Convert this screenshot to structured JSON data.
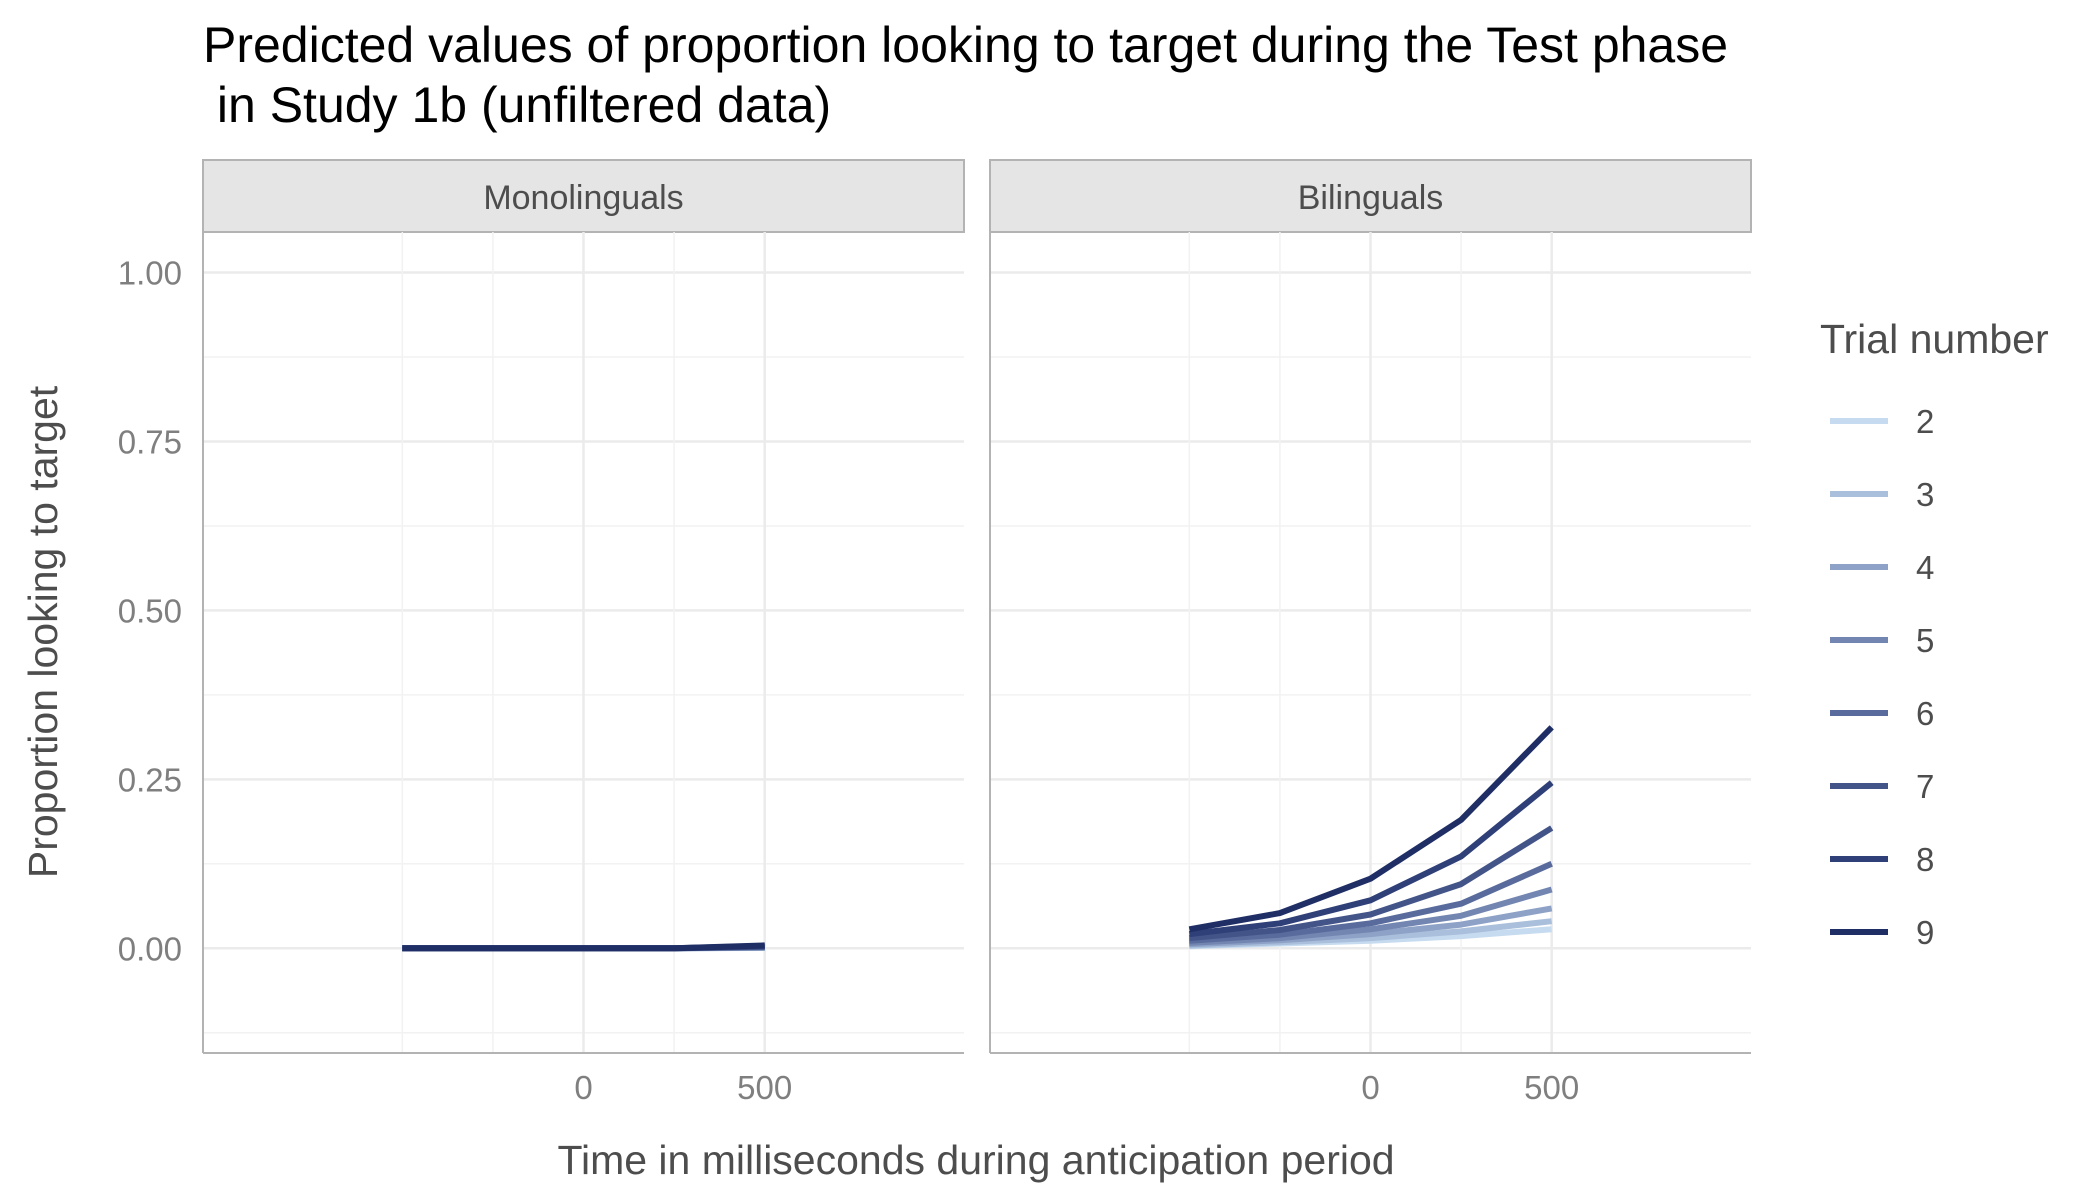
{
  "chart_data": {
    "type": "line",
    "title_line1": "Predicted values of proportion looking to target during the Test phase",
    "title_line2": " in Study 1b (unfiltered data)",
    "xlabel": "Time in milliseconds during anticipation period",
    "ylabel": "Proportion looking to target",
    "xlim": [
      -1050,
      1050
    ],
    "ylim": [
      -0.155,
      1.06
    ],
    "x_ticks": [
      0,
      500
    ],
    "x_ticks_labels": [
      "0",
      "500"
    ],
    "y_ticks": [
      0,
      0.25,
      0.5,
      0.75,
      1
    ],
    "y_ticks_labels": [
      "0.00",
      "0.25",
      "0.50",
      "0.75",
      "1.00"
    ],
    "grid": true,
    "legend": {
      "title": "Trial number",
      "position": "right"
    },
    "x": [
      -500,
      -250,
      0,
      250,
      500
    ],
    "panels": [
      {
        "name": "Monolinguals",
        "series": [
          {
            "name": "2",
            "color": "#c6dbef",
            "values": [
              0,
              0,
              0,
              0,
              0.0004
            ]
          },
          {
            "name": "3",
            "color": "#a9bfdb",
            "values": [
              0,
              0,
              0,
              0,
              0.0006
            ]
          },
          {
            "name": "4",
            "color": "#8da2c6",
            "values": [
              0,
              0,
              0,
              0,
              0.0009
            ]
          },
          {
            "name": "5",
            "color": "#7286b1",
            "values": [
              0,
              0,
              0,
              0,
              0.0013
            ]
          },
          {
            "name": "6",
            "color": "#586b9c",
            "values": [
              0,
              0,
              0,
              0,
              0.0018
            ]
          },
          {
            "name": "7",
            "color": "#435489",
            "values": [
              0,
              0,
              0,
              0,
              0.0025
            ]
          },
          {
            "name": "8",
            "color": "#2f3f77",
            "values": [
              0,
              0,
              0,
              0,
              0.0033
            ]
          },
          {
            "name": "9",
            "color": "#1f2f66",
            "values": [
              0,
              0,
              0,
              0,
              0.0042
            ]
          }
        ]
      },
      {
        "name": "Bilinguals",
        "series": [
          {
            "name": "2",
            "color": "#c6dbef",
            "values": [
              0.003,
              0.007,
              0.011,
              0.018,
              0.028
            ]
          },
          {
            "name": "3",
            "color": "#a9bfdb",
            "values": [
              0.004,
              0.009,
              0.015,
              0.025,
              0.04
            ]
          },
          {
            "name": "4",
            "color": "#8da2c6",
            "values": [
              0.006,
              0.012,
              0.021,
              0.035,
              0.059
            ]
          },
          {
            "name": "5",
            "color": "#7286b1",
            "values": [
              0.008,
              0.015,
              0.028,
              0.048,
              0.087
            ]
          },
          {
            "name": "6",
            "color": "#586b9c",
            "values": [
              0.011,
              0.02,
              0.037,
              0.066,
              0.125
            ]
          },
          {
            "name": "7",
            "color": "#435489",
            "values": [
              0.015,
              0.027,
              0.05,
              0.095,
              0.178
            ]
          },
          {
            "name": "8",
            "color": "#2f3f77",
            "values": [
              0.021,
              0.037,
              0.071,
              0.136,
              0.245
            ]
          },
          {
            "name": "9",
            "color": "#1f2f66",
            "values": [
              0.028,
              0.052,
              0.103,
              0.19,
              0.327
            ]
          }
        ]
      }
    ]
  }
}
